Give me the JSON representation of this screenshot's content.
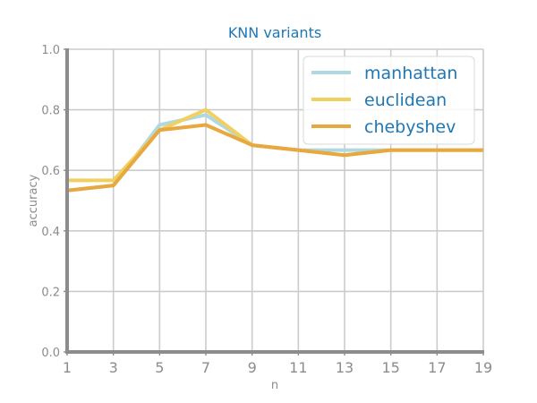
{
  "chart_data": {
    "type": "line",
    "title": "KNN variants",
    "xlabel": "n",
    "ylabel": "accuracy",
    "x": [
      1,
      3,
      5,
      7,
      9,
      11,
      13,
      15,
      17,
      19
    ],
    "xticks": [
      "1",
      "3",
      "5",
      "7",
      "9",
      "11",
      "13",
      "15",
      "17",
      "19"
    ],
    "yticks": [
      "0.0",
      "0.2",
      "0.4",
      "0.6",
      "0.8",
      "1.0"
    ],
    "xlim": [
      1,
      19
    ],
    "ylim": [
      0,
      1
    ],
    "grid": true,
    "legend_position": "top-right",
    "series": [
      {
        "name": "manhattan",
        "color": "#b0d8e0",
        "values": [
          0.533,
          0.55,
          0.75,
          0.783,
          0.683,
          0.667,
          0.667,
          0.667,
          0.667,
          0.667
        ]
      },
      {
        "name": "euclidean",
        "color": "#f0d060",
        "values": [
          0.567,
          0.567,
          0.733,
          0.8,
          0.683,
          0.667,
          0.65,
          0.667,
          0.667,
          0.667
        ]
      },
      {
        "name": "chebyshev",
        "color": "#e8a840",
        "values": [
          0.533,
          0.55,
          0.733,
          0.75,
          0.683,
          0.667,
          0.65,
          0.667,
          0.667,
          0.667
        ]
      }
    ]
  }
}
